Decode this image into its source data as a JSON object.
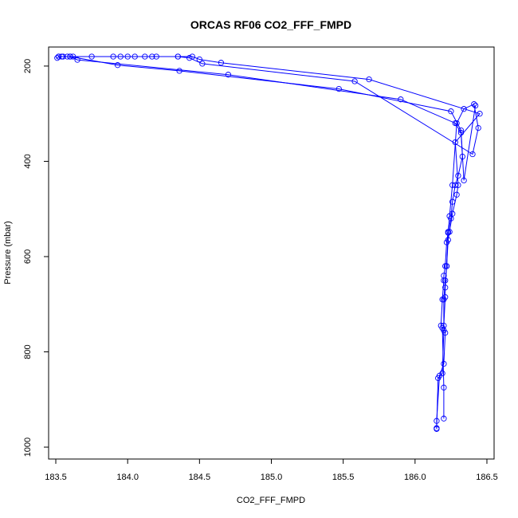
{
  "chart_data": {
    "type": "scatter",
    "title": "ORCAS RF06 CO2_FFF_FMPD",
    "xlabel": "CO2_FFF_FMPD",
    "ylabel": "Pressure (mbar)",
    "xlim": [
      183.45,
      186.55
    ],
    "ylim": [
      1025,
      160
    ],
    "y_inverted": true,
    "x_ticks": [
      183.5,
      184.0,
      184.5,
      185.0,
      185.5,
      186.0,
      186.5
    ],
    "x_tick_labels": [
      "183.5",
      "184.0",
      "184.5",
      "185.0",
      "185.5",
      "186.0",
      "186.5"
    ],
    "y_ticks": [
      200,
      400,
      600,
      800,
      1000
    ],
    "y_tick_labels": [
      "200",
      "400",
      "600",
      "800",
      "1000"
    ],
    "grid": false,
    "series_color": "#0000ff",
    "series": [
      {
        "style": "line+markers",
        "x": [
          186.15,
          186.15,
          186.17,
          186.2,
          186.21,
          186.2,
          186.21,
          186.21,
          186.22,
          186.23,
          186.24,
          186.26,
          186.29,
          186.3,
          186.28,
          186.45,
          185.68,
          184.65,
          184.5,
          184.45,
          184.35,
          184.2,
          184.05,
          183.9,
          183.75,
          183.6,
          183.52,
          183.51,
          183.52,
          183.55,
          183.6,
          183.65,
          184.7,
          185.9,
          186.28,
          186.32,
          186.33,
          186.3,
          186.28,
          186.26,
          186.25,
          186.23,
          186.22,
          186.21,
          186.2,
          186.2,
          186.19,
          186.18,
          186.19,
          186.2,
          186.2
        ],
        "y": [
          960,
          945,
          850,
          825,
          760,
          745,
          685,
          665,
          620,
          565,
          548,
          510,
          470,
          450,
          360,
          300,
          228,
          193,
          186,
          180,
          180,
          180,
          180,
          180,
          180,
          180,
          180,
          183,
          180,
          180,
          180,
          187,
          218,
          270,
          320,
          340,
          390,
          430,
          450,
          485,
          520,
          548,
          570,
          620,
          640,
          650,
          690,
          745,
          750,
          875,
          940
        ]
      },
      {
        "style": "line+markers",
        "x": [
          186.15,
          186.16,
          186.19,
          186.2,
          186.2,
          186.21,
          186.22,
          186.23,
          186.24,
          186.26,
          186.29,
          186.34,
          186.41,
          186.44,
          186.4,
          185.58,
          184.52,
          184.43,
          184.35,
          184.17,
          184.12,
          184.0,
          183.95,
          183.62,
          183.58,
          183.55,
          183.54,
          183.6,
          183.93,
          184.36,
          185.47,
          186.25,
          186.32,
          186.34,
          186.42
        ],
        "y": [
          962,
          855,
          845,
          755,
          690,
          650,
          620,
          550,
          515,
          450,
          320,
          290,
          280,
          330,
          385,
          232,
          195,
          183,
          180,
          180,
          180,
          180,
          180,
          180,
          180,
          180,
          180,
          180,
          198,
          210,
          248,
          295,
          335,
          440,
          283
        ]
      }
    ]
  }
}
